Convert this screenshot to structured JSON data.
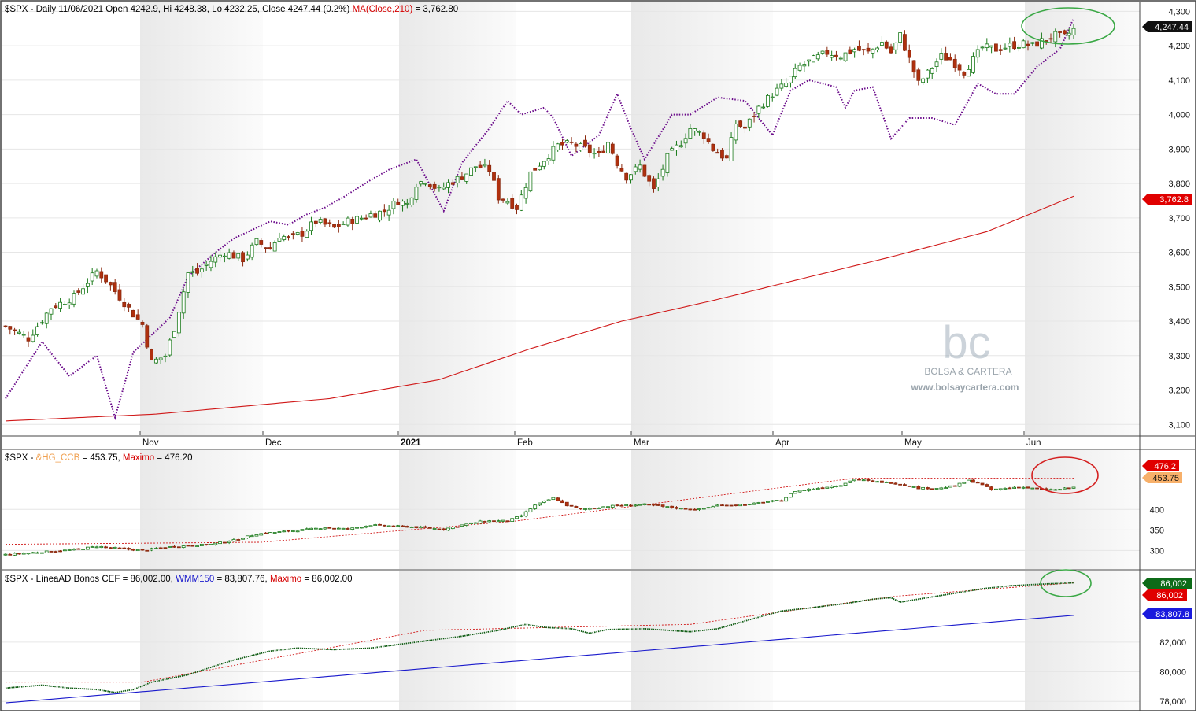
{
  "panels": {
    "price": {
      "title_symbol": "$SPX - Daily 11/06/2021 Open 4242.9, Hi 4248.38, Lo 4232.25, Close 4247.44 (0.2%)",
      "title_ma": "MA(Close,210)",
      "title_ma_value": " = 3,762.80",
      "last_price_label": "4,247.44",
      "ma_label": "3,762.8"
    },
    "hg": {
      "title_prefix": "$SPX - ",
      "title_series": "&HG_CCB",
      "title_value": " = 453.75, ",
      "title_max": "Maximo",
      "title_max_value": " = 476.20",
      "max_label": "476.2",
      "last_label": "453.75"
    },
    "ad": {
      "title_series": "$SPX - LíneaAD Bonos CEF",
      "title_value": " = 86,002.00, ",
      "title_wmm": "WMM150",
      "title_wmm_value": " = 83,807.76, ",
      "title_max": "Maximo",
      "title_max_value": " = 86,002.00",
      "last_label": "86,002",
      "max_label": "86,002",
      "wmm_label": "83,807.8"
    }
  },
  "watermark": {
    "logo": "bc",
    "name": "BOLSA & CARTERA",
    "url": "www.bolsaycartera.com"
  },
  "chart_data": [
    {
      "type": "candlestick",
      "title": "$SPX - Daily 11/06/2021 Open 4242.9, Hi 4248.38, Lo 4232.25, Close 4247.44 (0.2%) MA(Close,210) = 3,762.80",
      "x_ticks": [
        "Nov",
        "Dec",
        "2021",
        "Feb",
        "Mar",
        "Apr",
        "May",
        "Jun"
      ],
      "y_ticks": [
        "4,300",
        "4,200",
        "4,100",
        "4,000",
        "3,900",
        "3,800",
        "3,700",
        "3,600",
        "3,500",
        "3,400",
        "3,300",
        "3,200",
        "3,100"
      ],
      "ylim": [
        3080,
        4310
      ],
      "close_path": [
        [
          0,
          3385
        ],
        [
          5,
          3350
        ],
        [
          10,
          3440
        ],
        [
          15,
          3470
        ],
        [
          20,
          3545
        ],
        [
          22,
          3520
        ],
        [
          25,
          3470
        ],
        [
          28,
          3420
        ],
        [
          30,
          3390
        ],
        [
          32,
          3280
        ],
        [
          35,
          3300
        ],
        [
          37,
          3380
        ],
        [
          40,
          3540
        ],
        [
          42,
          3540
        ],
        [
          45,
          3575
        ],
        [
          48,
          3600
        ],
        [
          52,
          3580
        ],
        [
          55,
          3630
        ],
        [
          58,
          3610
        ],
        [
          60,
          3650
        ],
        [
          62,
          3640
        ],
        [
          65,
          3655
        ],
        [
          68,
          3690
        ],
        [
          72,
          3670
        ],
        [
          75,
          3690
        ],
        [
          78,
          3700
        ],
        [
          80,
          3710
        ],
        [
          83,
          3720
        ],
        [
          86,
          3750
        ],
        [
          88,
          3740
        ],
        [
          90,
          3800
        ],
        [
          92,
          3810
        ],
        [
          95,
          3780
        ],
        [
          97,
          3800
        ],
        [
          100,
          3820
        ],
        [
          103,
          3850
        ],
        [
          106,
          3840
        ],
        [
          108,
          3760
        ],
        [
          110,
          3750
        ],
        [
          112,
          3730
        ],
        [
          115,
          3830
        ],
        [
          118,
          3870
        ],
        [
          121,
          3910
        ],
        [
          124,
          3915
        ],
        [
          127,
          3900
        ],
        [
          130,
          3880
        ],
        [
          132,
          3920
        ],
        [
          134,
          3860
        ],
        [
          136,
          3820
        ],
        [
          139,
          3850
        ],
        [
          142,
          3780
        ],
        [
          145,
          3875
        ],
        [
          148,
          3920
        ],
        [
          150,
          3960
        ],
        [
          153,
          3940
        ],
        [
          155,
          3900
        ],
        [
          158,
          3870
        ],
        [
          160,
          3975
        ],
        [
          162,
          3960
        ],
        [
          165,
          4020
        ],
        [
          168,
          4060
        ],
        [
          171,
          4090
        ],
        [
          174,
          4140
        ],
        [
          177,
          4160
        ],
        [
          180,
          4180
        ],
        [
          183,
          4170
        ],
        [
          186,
          4190
        ],
        [
          189,
          4180
        ],
        [
          192,
          4210
        ],
        [
          194,
          4180
        ],
        [
          196,
          4230
        ],
        [
          198,
          4160
        ],
        [
          200,
          4090
        ],
        [
          202,
          4120
        ],
        [
          205,
          4170
        ],
        [
          207,
          4160
        ],
        [
          210,
          4125
        ],
        [
          212,
          4160
        ],
        [
          214,
          4195
        ],
        [
          217,
          4190
        ],
        [
          220,
          4200
        ],
        [
          223,
          4205
        ],
        [
          225,
          4200
        ],
        [
          228,
          4220
        ],
        [
          230,
          4230
        ],
        [
          232,
          4225
        ],
        [
          234,
          4247
        ]
      ],
      "series": [
        {
          "name": "MA(Close,210)",
          "values": [
            [
              0,
              3110
            ],
            [
              33,
              3130
            ],
            [
              71,
              3175
            ],
            [
              95,
              3230
            ],
            [
              115,
              3320
            ],
            [
              135,
              3400
            ],
            [
              155,
              3460
            ],
            [
              175,
              3525
            ],
            [
              195,
              3590
            ],
            [
              215,
              3660
            ],
            [
              234,
              3762.8
            ]
          ]
        },
        {
          "name": "",
          "values": [
            [
              0,
              3175
            ],
            [
              8,
              3340
            ],
            [
              14,
              3240
            ],
            [
              20,
              3300
            ],
            [
              24,
              3120
            ],
            [
              28,
              3310
            ],
            [
              32,
              3360
            ],
            [
              36,
              3410
            ],
            [
              40,
              3530
            ],
            [
              46,
              3600
            ],
            [
              50,
              3640
            ],
            [
              58,
              3690
            ],
            [
              62,
              3680
            ],
            [
              66,
              3710
            ],
            [
              70,
              3730
            ],
            [
              74,
              3760
            ],
            [
              80,
              3810
            ],
            [
              84,
              3840
            ],
            [
              90,
              3870
            ],
            [
              96,
              3720
            ],
            [
              100,
              3860
            ],
            [
              106,
              3960
            ],
            [
              110,
              4040
            ],
            [
              113,
              4000
            ],
            [
              118,
              4020
            ],
            [
              120,
              3990
            ],
            [
              124,
              3880
            ],
            [
              130,
              3940
            ],
            [
              134,
              4060
            ],
            [
              137,
              3960
            ],
            [
              140,
              3870
            ],
            [
              146,
              4000
            ],
            [
              150,
              4000
            ],
            [
              156,
              4050
            ],
            [
              162,
              4040
            ],
            [
              168,
              3940
            ],
            [
              172,
              4070
            ],
            [
              176,
              4100
            ],
            [
              182,
              4080
            ],
            [
              184,
              4020
            ],
            [
              186,
              4070
            ],
            [
              190,
              4080
            ],
            [
              194,
              3930
            ],
            [
              198,
              3990
            ],
            [
              203,
              3990
            ],
            [
              208,
              3970
            ],
            [
              213,
              4090
            ],
            [
              217,
              4060
            ],
            [
              221,
              4060
            ],
            [
              226,
              4140
            ],
            [
              231,
              4190
            ],
            [
              234,
              4280
            ]
          ]
        }
      ]
    },
    {
      "type": "candlestick",
      "title": "$SPX - &HG_CCB = 453.75, Maximo = 476.20",
      "y_ticks": [
        "400",
        "350",
        "300"
      ],
      "ylim": [
        270,
        510
      ],
      "close_path": [
        [
          0,
          290
        ],
        [
          15,
          302
        ],
        [
          20,
          310
        ],
        [
          25,
          305
        ],
        [
          30,
          300
        ],
        [
          35,
          308
        ],
        [
          45,
          315
        ],
        [
          50,
          325
        ],
        [
          55,
          340
        ],
        [
          60,
          345
        ],
        [
          65,
          350
        ],
        [
          70,
          356
        ],
        [
          75,
          352
        ],
        [
          80,
          362
        ],
        [
          84,
          360
        ],
        [
          88,
          358
        ],
        [
          92,
          355
        ],
        [
          96,
          352
        ],
        [
          100,
          362
        ],
        [
          105,
          372
        ],
        [
          110,
          372
        ],
        [
          113,
          385
        ],
        [
          116,
          410
        ],
        [
          120,
          428
        ],
        [
          123,
          410
        ],
        [
          126,
          400
        ],
        [
          132,
          408
        ],
        [
          140,
          412
        ],
        [
          148,
          402
        ],
        [
          152,
          400
        ],
        [
          156,
          410
        ],
        [
          163,
          412
        ],
        [
          166,
          418
        ],
        [
          170,
          422
        ],
        [
          173,
          445
        ],
        [
          178,
          452
        ],
        [
          183,
          460
        ],
        [
          186,
          474
        ],
        [
          190,
          468
        ],
        [
          194,
          465
        ],
        [
          197,
          460
        ],
        [
          200,
          452
        ],
        [
          205,
          452
        ],
        [
          208,
          458
        ],
        [
          211,
          470
        ],
        [
          213,
          465
        ],
        [
          216,
          448
        ],
        [
          222,
          455
        ],
        [
          226,
          450
        ],
        [
          230,
          448
        ],
        [
          234,
          453.75
        ]
      ],
      "series": [
        {
          "name": "Maximo",
          "values": [
            [
              0,
              315
            ],
            [
              56,
              320
            ],
            [
              112,
              372
            ],
            [
              186,
              476.2
            ],
            [
              234,
              476.2
            ]
          ]
        }
      ]
    },
    {
      "type": "line",
      "title": "$SPX - LíneaAD Bonos CEF = 86,002.00, WMM150 = 83,807.76, Maximo = 86,002.00",
      "y_ticks": [
        "82,000",
        "80,000",
        "78,000"
      ],
      "ylim": [
        77800,
        86400
      ],
      "series": [
        {
          "name": "LíneaAD Bonos CEF",
          "values": [
            [
              0,
              78900
            ],
            [
              8,
              79100
            ],
            [
              14,
              78900
            ],
            [
              20,
              78800
            ],
            [
              24,
              78600
            ],
            [
              28,
              78800
            ],
            [
              32,
              79300
            ],
            [
              40,
              79800
            ],
            [
              50,
              80800
            ],
            [
              58,
              81400
            ],
            [
              64,
              81600
            ],
            [
              72,
              81500
            ],
            [
              80,
              81600
            ],
            [
              90,
              82000
            ],
            [
              100,
              82400
            ],
            [
              108,
              82800
            ],
            [
              114,
              83200
            ],
            [
              118,
              83000
            ],
            [
              124,
              82900
            ],
            [
              128,
              82600
            ],
            [
              132,
              82850
            ],
            [
              140,
              82900
            ],
            [
              150,
              82700
            ],
            [
              156,
              82900
            ],
            [
              164,
              83600
            ],
            [
              170,
              84100
            ],
            [
              176,
              84300
            ],
            [
              184,
              84600
            ],
            [
              190,
              84900
            ],
            [
              194,
              85000
            ],
            [
              196,
              84700
            ],
            [
              202,
              85000
            ],
            [
              208,
              85300
            ],
            [
              214,
              85600
            ],
            [
              220,
              85800
            ],
            [
              226,
              85900
            ],
            [
              234,
              86002
            ]
          ]
        },
        {
          "name": "WMM150",
          "values": [
            [
              0,
              77900
            ],
            [
              234,
              83807.8
            ]
          ]
        },
        {
          "name": "Maximo",
          "values": [
            [
              0,
              79300
            ],
            [
              30,
              79300
            ],
            [
              92,
              82800
            ],
            [
              150,
              83200
            ],
            [
              195,
              85100
            ],
            [
              234,
              86002
            ]
          ]
        }
      ]
    }
  ]
}
